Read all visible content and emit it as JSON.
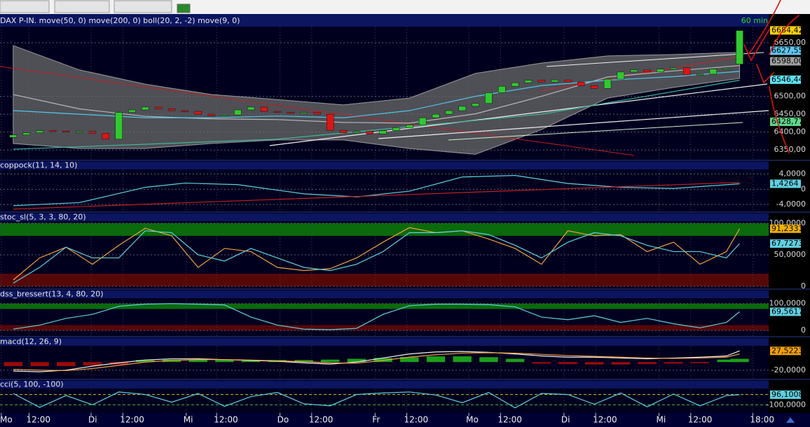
{
  "chart_data": [
    {
      "type": "candlestick",
      "title": "DAX P-IN. move(50, 0) move(200, 0) boll(20, 2, -2) move(9, 0)",
      "interval": "60 min",
      "ylim": [
        6323,
        6695
      ],
      "yticks": [
        {
          "value": 6650,
          "label": "6650,00"
        },
        {
          "value": 6500,
          "label": "6500,00"
        },
        {
          "value": 6450,
          "label": "6450,00"
        },
        {
          "value": 6400,
          "label": "6400,00"
        },
        {
          "value": 6350,
          "label": "6350,00"
        }
      ],
      "grid": true,
      "x": [
        0,
        1,
        2,
        3,
        4,
        5,
        6,
        7,
        8,
        9,
        10,
        11,
        12,
        13,
        14,
        15,
        16,
        17,
        18,
        19,
        20,
        21,
        22,
        23,
        24,
        25,
        26,
        27,
        28,
        29,
        30,
        31,
        32,
        33,
        34,
        35,
        36,
        37,
        38,
        39,
        40,
        41,
        42,
        43,
        44,
        45,
        46,
        47,
        48,
        49,
        50,
        51,
        52,
        53,
        54,
        55
      ],
      "open": [
        6385,
        6392,
        6398,
        6404,
        6403,
        6400,
        6402,
        6397,
        6380,
        6455,
        6462,
        6470,
        6465,
        6460,
        6458,
        6450,
        6445,
        6448,
        6462,
        6470,
        6458,
        6455,
        6452,
        6455,
        6450,
        6405,
        6398,
        6402,
        6395,
        6404,
        6412,
        6420,
        6440,
        6450,
        6460,
        6472,
        6480,
        6510,
        6528,
        6538,
        6545,
        6540,
        6546,
        6540,
        6530,
        6522,
        6548,
        6568,
        6574,
        6568,
        6576,
        6580,
        6560,
        6562,
        6576,
        6590
      ],
      "close": [
        6392,
        6398,
        6404,
        6403,
        6400,
        6402,
        6397,
        6380,
        6455,
        6462,
        6470,
        6465,
        6460,
        6458,
        6450,
        6445,
        6448,
        6462,
        6470,
        6458,
        6455,
        6452,
        6455,
        6450,
        6405,
        6398,
        6402,
        6395,
        6404,
        6412,
        6420,
        6440,
        6450,
        6460,
        6472,
        6480,
        6510,
        6528,
        6538,
        6545,
        6540,
        6546,
        6540,
        6530,
        6522,
        6548,
        6568,
        6574,
        6568,
        6576,
        6580,
        6560,
        6562,
        6576,
        6578,
        6684
      ],
      "up_color": "#2ccc2c",
      "down_color": "#e01414",
      "band": {
        "color": "#6a6a6a",
        "x": [
          0,
          5,
          10,
          15,
          20,
          25,
          30,
          35,
          40,
          45,
          50,
          55
        ],
        "upper": [
          6642,
          6574,
          6534,
          6505,
          6491,
          6476,
          6495,
          6564,
          6593,
          6613,
          6617,
          6623
        ],
        "lower": [
          6368,
          6354,
          6354,
          6368,
          6378,
          6378,
          6354,
          6338,
          6407,
          6495,
          6525,
          6550
        ]
      },
      "series": [
        {
          "color": "#b8b8b8",
          "x": [
            0,
            5,
            10,
            15,
            20,
            25,
            30,
            35,
            40,
            45,
            50,
            55
          ],
          "values": [
            6505,
            6465,
            6444,
            6437,
            6435,
            6427,
            6425,
            6451,
            6500,
            6554,
            6571,
            6586
          ]
        },
        {
          "color": "#4fc8e8",
          "x": [
            0,
            5,
            10,
            15,
            20,
            25,
            30,
            35,
            40,
            45,
            50,
            55
          ],
          "values": [
            6460,
            6450,
            6440,
            6440,
            6445,
            6440,
            6460,
            6500,
            6530,
            6545,
            6555,
            6570
          ]
        },
        {
          "color": "#3fb89a",
          "x": [
            0,
            20,
            40,
            55
          ],
          "values": [
            6352,
            6380,
            6450,
            6545
          ]
        }
      ],
      "markers": [
        {
          "value": 6684.42,
          "label": "6684,42",
          "color": "#ffd200"
        },
        {
          "value": 6627.55,
          "label": "6627,55",
          "color": "#5fc8f0"
        },
        {
          "value": 6598,
          "label": "6598,00",
          "color": "#a0a0a0"
        },
        {
          "value": 6546.44,
          "label": "6546,44",
          "color": "#5fe0f0"
        },
        {
          "value": 6428.77,
          "label": "6428,77",
          "color": "#5ed68a"
        }
      ]
    },
    {
      "type": "line",
      "title": "coppock(11, 14, 10)",
      "ylim": [
        -5.8,
        7.2
      ],
      "yticks": [
        {
          "value": 4,
          "label": "4,0000"
        },
        0,
        {
          "value": -4,
          "label": "-4,0000"
        }
      ],
      "grid": true,
      "series": [
        {
          "color": "#5fd0e0",
          "x": [
            0,
            5,
            10,
            13,
            17,
            22,
            26,
            30,
            34,
            38,
            42,
            46,
            50,
            55
          ],
          "values": [
            -4.3,
            -3.5,
            0.5,
            1.6,
            1.2,
            -1.2,
            -2,
            -0.5,
            3.2,
            3.6,
            1.5,
            0.5,
            0.2,
            1.4264
          ]
        },
        {
          "color": "#c02020",
          "x": [
            0,
            55
          ],
          "values": [
            -5.2,
            1.8
          ]
        }
      ],
      "markers": [
        {
          "value": 1.4264,
          "label": "1,4264",
          "color": "#5fd0e0"
        }
      ]
    },
    {
      "type": "line",
      "title": "stoc_sl(5, 3, 3, 80, 20)",
      "ylim": [
        -3.3,
        115.4
      ],
      "yticks": [
        {
          "value": 100,
          "label": "100,0000"
        },
        {
          "value": 50,
          "label": "50,0000"
        },
        0
      ],
      "grid": true,
      "bands": [
        {
          "from": 80,
          "to": 100,
          "color": "#0b6a0b"
        },
        {
          "from": 0,
          "to": 20,
          "color": "#560808"
        }
      ],
      "x": [
        0,
        2,
        4,
        6,
        8,
        10,
        12,
        14,
        16,
        18,
        20,
        22,
        24,
        26,
        28,
        30,
        32,
        34,
        36,
        38,
        40,
        42,
        44,
        46,
        48,
        50,
        52,
        54,
        55
      ],
      "series": [
        {
          "color": "#f0a040",
          "values": [
            10,
            45,
            62,
            35,
            65,
            92,
            80,
            30,
            60,
            55,
            30,
            25,
            28,
            45,
            70,
            93,
            85,
            88,
            75,
            60,
            35,
            88,
            80,
            82,
            55,
            70,
            35,
            55,
            91.2331
          ]
        },
        {
          "color": "#5fd0e0",
          "values": [
            5,
            30,
            62,
            45,
            45,
            88,
            85,
            50,
            40,
            60,
            45,
            30,
            25,
            35,
            55,
            85,
            85,
            88,
            82,
            65,
            45,
            70,
            85,
            80,
            65,
            55,
            55,
            45,
            67.7273
          ]
        }
      ],
      "markers": [
        {
          "value": 91.2331,
          "label": "91,2331",
          "color": "#f0b000"
        },
        {
          "value": 67.7273,
          "label": "67,7273",
          "color": "#5fd0e0"
        }
      ]
    },
    {
      "type": "line",
      "title": "dss_bressert(13, 4, 80, 20)",
      "ylim": [
        -20.5,
        148.7
      ],
      "yticks": [
        {
          "value": 100,
          "label": "100,0000"
        },
        0
      ],
      "grid": true,
      "bands": [
        {
          "from": 80,
          "to": 100,
          "color": "#0b6a0b"
        },
        {
          "from": 0,
          "to": 20,
          "color": "#560808"
        }
      ],
      "x": [
        0,
        2,
        4,
        6,
        8,
        10,
        12,
        14,
        16,
        18,
        20,
        22,
        24,
        26,
        28,
        30,
        32,
        34,
        36,
        38,
        40,
        42,
        44,
        46,
        48,
        50,
        52,
        54,
        55
      ],
      "series": [
        {
          "color": "#5fd0e0",
          "values": [
            5,
            20,
            45,
            60,
            90,
            98,
            100,
            98,
            95,
            50,
            20,
            5,
            3,
            8,
            60,
            92,
            98,
            98,
            96,
            88,
            50,
            40,
            55,
            30,
            45,
            25,
            10,
            30,
            69.5617
          ]
        }
      ],
      "markers": [
        {
          "value": 69.5617,
          "label": "69,5617",
          "color": "#5fd0e0"
        }
      ]
    },
    {
      "type": "line",
      "title": "macd(12, 26, 9)",
      "ylim": [
        -41,
        59
      ],
      "yticks": [
        {
          "value": -20,
          "label": "-20,0000"
        }
      ],
      "grid": true,
      "x": [
        0,
        2,
        4,
        6,
        8,
        10,
        12,
        14,
        16,
        18,
        20,
        22,
        24,
        26,
        28,
        30,
        32,
        34,
        36,
        38,
        40,
        42,
        44,
        46,
        48,
        50,
        52,
        54,
        55
      ],
      "series": [
        {
          "style": "bar",
          "up_color": "#1aa01a",
          "down_color": "#9a0a0a",
          "values": [
            -10,
            -10,
            -10,
            -8,
            -6,
            5,
            6,
            6,
            5,
            4,
            5,
            5,
            6,
            8,
            10,
            12,
            14,
            14,
            12,
            8,
            -4,
            -5,
            -6,
            -6,
            -5,
            -4,
            -3,
            6,
            8
          ]
        },
        {
          "color": "#f0f0f0",
          "values": [
            -22,
            -24,
            -20,
            -10,
            -2,
            5,
            8,
            8,
            6,
            4,
            2,
            -2,
            -5,
            0,
            10,
            20,
            25,
            26,
            24,
            20,
            15,
            12,
            12,
            10,
            8,
            10,
            12,
            15,
            27.5223
          ]
        },
        {
          "color": "#f0a040",
          "values": [
            -18,
            -20,
            -21,
            -16,
            -8,
            0,
            4,
            6,
            6,
            5,
            3,
            1,
            -2,
            -3,
            4,
            12,
            18,
            22,
            23,
            22,
            19,
            16,
            14,
            12,
            10,
            9,
            10,
            12,
            20
          ]
        }
      ],
      "markers": [
        {
          "value": 27.5223,
          "label": "27,5223",
          "color": "#f0a000"
        }
      ]
    },
    {
      "type": "line",
      "title": "cci(5, 100, -100)",
      "ylim": [
        -260,
        367
      ],
      "yticks": [
        {
          "value": -100,
          "label": "-100,0000"
        }
      ],
      "grid": false,
      "levels": [
        {
          "value": 100,
          "color": "#c8c800"
        },
        {
          "value": -100,
          "color": "#40c040"
        }
      ],
      "x": [
        0,
        2,
        4,
        6,
        8,
        10,
        12,
        14,
        16,
        18,
        20,
        22,
        24,
        26,
        28,
        30,
        32,
        34,
        36,
        38,
        40,
        42,
        44,
        46,
        48,
        50,
        52,
        54,
        55
      ],
      "series": [
        {
          "color": "#5fd0e0",
          "values": [
            120,
            -150,
            80,
            -100,
            150,
            100,
            -50,
            120,
            -130,
            60,
            140,
            -80,
            -120,
            100,
            130,
            150,
            90,
            -60,
            140,
            -160,
            120,
            100,
            -90,
            130,
            -140,
            110,
            -120,
            80,
            96.1008
          ]
        }
      ],
      "markers": [
        {
          "value": 96.1008,
          "label": "96,1008",
          "color": "#5fd0e0"
        }
      ],
      "xlim": [
        -1,
        57.2
      ],
      "xticks": [
        {
          "value": -0.9,
          "label": "Mo"
        },
        {
          "value": 1.2,
          "label": "12:00"
        },
        {
          "value": 5.9,
          "label": "Di"
        },
        {
          "value": 8.3,
          "label": "12:00"
        },
        {
          "value": 13.1,
          "label": "Mi"
        },
        {
          "value": 15.4,
          "label": "12:00"
        },
        {
          "value": 20.2,
          "label": "Do"
        },
        {
          "value": 22.6,
          "label": "12:00"
        },
        {
          "value": 27.4,
          "label": "Fr"
        },
        {
          "value": 29.8,
          "label": "12:00"
        },
        {
          "value": 34.5,
          "label": "Mo"
        },
        {
          "value": 36.9,
          "label": "12:00"
        },
        {
          "value": 41.7,
          "label": "Di"
        },
        {
          "value": 44.1,
          "label": "12:00"
        },
        {
          "value": 48.9,
          "label": "Mi"
        },
        {
          "value": 51.3,
          "label": "12:00"
        },
        {
          "value": 56,
          "label": "18:00"
        }
      ]
    }
  ]
}
